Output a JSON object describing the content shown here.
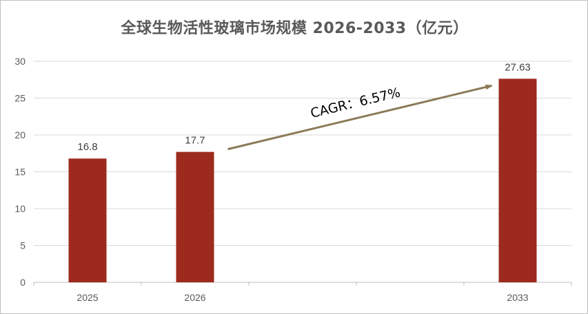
{
  "chart_data": {
    "type": "bar",
    "title": "全球生物活性玻璃市场规模 2026-2033（亿元）",
    "categories": [
      "2025",
      "2026",
      "",
      "",
      "2033"
    ],
    "values": [
      16.8,
      17.7,
      null,
      null,
      27.63
    ],
    "data_labels": [
      "16.8",
      "17.7",
      "",
      "",
      "27.63"
    ],
    "ylim": [
      0,
      30
    ],
    "yticks": [
      0,
      5,
      10,
      15,
      20,
      25,
      30
    ],
    "grid": true,
    "legend": "none",
    "bar_color": "#9c2b1e",
    "annotation": {
      "text": "CAGR：6.57%",
      "from_category": "2026",
      "to_category": "2033",
      "arrow_color": "#8b7a58"
    }
  }
}
